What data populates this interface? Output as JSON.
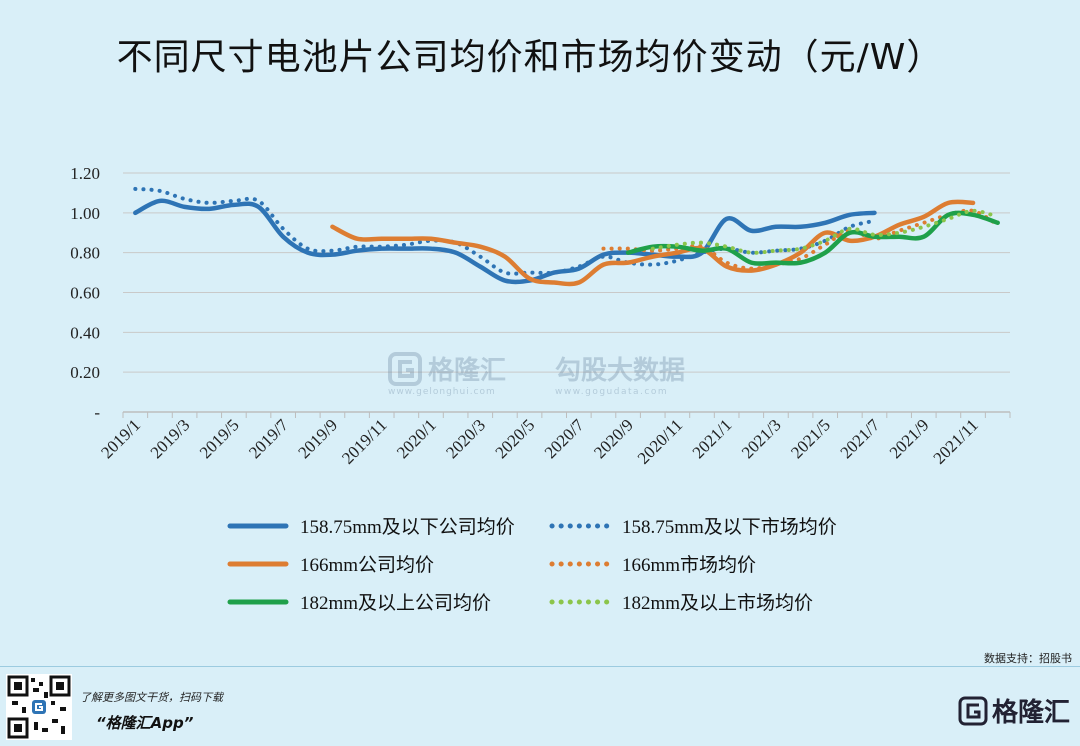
{
  "title": "不同尺寸电池片公司均价和市场均价变动（元/W）",
  "source": "数据支持：招股书",
  "footer": {
    "line1": "了解更多图文干货，扫码下载",
    "line2": "“格隆汇App”",
    "brand": "格隆汇"
  },
  "watermark": {
    "left_text": "格隆汇",
    "left_url": "www.gelonghui.com",
    "right_text": "勾股大数据",
    "right_url": "www.gogudata.com"
  },
  "chart_data": {
    "type": "line",
    "title": "不同尺寸电池片公司均价和市场均价变动（元/W）",
    "ylim": [
      0,
      1.2
    ],
    "y_ticks": [
      "-",
      "0.20",
      "0.40",
      "0.60",
      "0.80",
      "1.00",
      "1.20"
    ],
    "x_categories": [
      "2019/1",
      "2019/2",
      "2019/3",
      "2019/4",
      "2019/5",
      "2019/6",
      "2019/7",
      "2019/8",
      "2019/9",
      "2019/10",
      "2019/11",
      "2019/12",
      "2020/1",
      "2020/2",
      "2020/3",
      "2020/4",
      "2020/5",
      "2020/6",
      "2020/7",
      "2020/8",
      "2020/9",
      "2020/10",
      "2020/11",
      "2020/12",
      "2021/1",
      "2021/2",
      "2021/3",
      "2021/4",
      "2021/5",
      "2021/6",
      "2021/7",
      "2021/8",
      "2021/9",
      "2021/10",
      "2021/11",
      "2021/12"
    ],
    "x_tick_labels": [
      "2019/1",
      "2019/3",
      "2019/5",
      "2019/7",
      "2019/9",
      "2019/11",
      "2020/1",
      "2020/3",
      "2020/5",
      "2020/7",
      "2020/9",
      "2020/11",
      "2021/1",
      "2021/3",
      "2021/5",
      "2021/7",
      "2021/9",
      "2021/11"
    ],
    "legend_position": "bottom",
    "grid": "horizontal",
    "series": [
      {
        "name": "158.75mm及以下公司均价",
        "color": "#2e74b5",
        "style": "solid",
        "start": 0,
        "values": [
          1.0,
          1.06,
          1.03,
          1.02,
          1.04,
          1.03,
          0.88,
          0.8,
          0.79,
          0.81,
          0.82,
          0.82,
          0.82,
          0.8,
          0.73,
          0.66,
          0.66,
          0.7,
          0.72,
          0.79,
          0.8,
          0.79,
          0.78,
          0.8,
          0.97,
          0.91,
          0.93,
          0.93,
          0.95,
          0.99,
          1.0
        ]
      },
      {
        "name": "158.75mm及以下市场均价",
        "color": "#2e74b5",
        "style": "dotted",
        "start": 0,
        "values": [
          1.12,
          1.11,
          1.07,
          1.05,
          1.06,
          1.06,
          0.92,
          0.82,
          0.81,
          0.83,
          0.83,
          0.84,
          0.86,
          0.85,
          0.78,
          0.7,
          0.7,
          0.7,
          0.73,
          0.78,
          0.75,
          0.74,
          0.76,
          0.8,
          0.82,
          0.8,
          0.81,
          0.82,
          0.86,
          0.93,
          0.96
        ]
      },
      {
        "name": "166mm公司均价",
        "color": "#dd7d32",
        "style": "solid",
        "start": 8,
        "values": [
          0.93,
          0.87,
          0.87,
          0.87,
          0.87,
          0.85,
          0.83,
          0.78,
          0.67,
          0.65,
          0.65,
          0.74,
          0.75,
          0.78,
          0.8,
          0.82,
          0.73,
          0.71,
          0.74,
          0.8,
          0.9,
          0.86,
          0.88,
          0.94,
          0.98,
          1.05,
          1.05
        ]
      },
      {
        "name": "166mm市场均价",
        "color": "#dd7d32",
        "style": "dotted",
        "start": 19,
        "values": [
          0.82,
          0.82,
          0.81,
          0.82,
          0.83,
          0.75,
          0.72,
          0.74,
          0.77,
          0.84,
          0.91,
          0.87,
          0.91,
          0.95,
          0.99,
          1.01,
          0.94
        ]
      },
      {
        "name": "182mm及以上公司均价",
        "color": "#1fa04a",
        "style": "solid",
        "start": 20,
        "values": [
          0.8,
          0.83,
          0.83,
          0.81,
          0.82,
          0.75,
          0.75,
          0.75,
          0.8,
          0.9,
          0.88,
          0.88,
          0.88,
          0.99,
          0.99,
          0.95
        ]
      },
      {
        "name": "182mm及以上市场均价",
        "color": "#8bc54b",
        "style": "dotted",
        "start": 21,
        "values": [
          0.82,
          0.84,
          0.85,
          0.83,
          0.8,
          0.81,
          0.82,
          0.86,
          0.92,
          0.89,
          0.9,
          0.93,
          0.97,
          1.01,
          0.98
        ]
      }
    ]
  }
}
